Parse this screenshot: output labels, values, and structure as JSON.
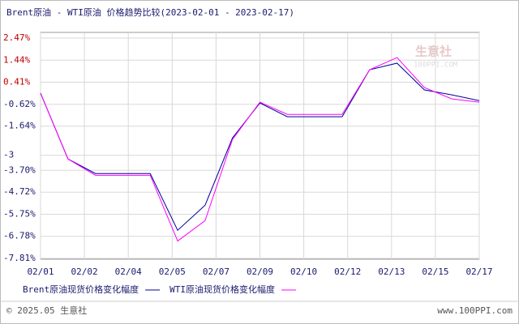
{
  "chart_data": {
    "type": "line",
    "title": "Brent原油 - WTI原油 价格趋势比较(2023-02-01 - 2023-02-17)",
    "x": [
      1,
      2,
      3,
      4,
      5,
      6,
      7,
      8,
      9,
      10,
      11,
      12,
      13,
      14,
      15,
      16,
      17
    ],
    "xlim": [
      1,
      17
    ],
    "xticks": [
      {
        "value": 1,
        "label": "02/01"
      },
      {
        "value": 2.6,
        "label": "02/02"
      },
      {
        "value": 4.2,
        "label": "02/04"
      },
      {
        "value": 5.8,
        "label": "02/05"
      },
      {
        "value": 7.4,
        "label": "02/07"
      },
      {
        "value": 9,
        "label": "02/09"
      },
      {
        "value": 10.6,
        "label": "02/10"
      },
      {
        "value": 12.2,
        "label": "02/12"
      },
      {
        "value": 13.8,
        "label": "02/13"
      },
      {
        "value": 15.4,
        "label": "02/15"
      },
      {
        "value": 17,
        "label": "02/17"
      }
    ],
    "ylim": [
      -7.81,
      2.47
    ],
    "yticks": [
      {
        "value": 2.47,
        "label": "2.47%"
      },
      {
        "value": 1.44,
        "label": "1.44%"
      },
      {
        "value": 0.41,
        "label": "0.41%"
      },
      {
        "value": -0.62,
        "label": "-0.62%"
      },
      {
        "value": -1.64,
        "label": "-1.64%"
      },
      -3,
      {
        "value": -3.7,
        "label": "-3.70%"
      },
      {
        "value": -4.72,
        "label": "-4.72%"
      },
      {
        "value": -5.75,
        "label": "-5.75%"
      },
      {
        "value": -6.78,
        "label": "-6.78%"
      },
      {
        "value": -7.81,
        "label": "-7.81%"
      }
    ],
    "grid": true,
    "series": [
      {
        "name": "Brent原油现货价格变化幅度",
        "color": "#000099",
        "values": [
          -0.1,
          -3.17,
          -3.85,
          -3.85,
          -3.85,
          -6.5,
          -5.33,
          -2.19,
          -0.56,
          -1.2,
          -1.2,
          -1.2,
          0.99,
          1.3,
          0.05,
          -0.18,
          -0.45
        ]
      },
      {
        "name": "WTI原油现货价格变化幅度",
        "color": "#ff00ff",
        "values": [
          -0.1,
          -3.17,
          -3.93,
          -3.93,
          -3.93,
          -7.0,
          -6.05,
          -2.26,
          -0.52,
          -1.09,
          -1.09,
          -1.09,
          0.99,
          1.56,
          0.16,
          -0.37,
          -0.52
        ]
      }
    ],
    "watermark": "生意社",
    "watermark_sub": "100PPI.COM",
    "copyright": "© 2025.05 生意社",
    "website": "www.100PPI.com"
  }
}
